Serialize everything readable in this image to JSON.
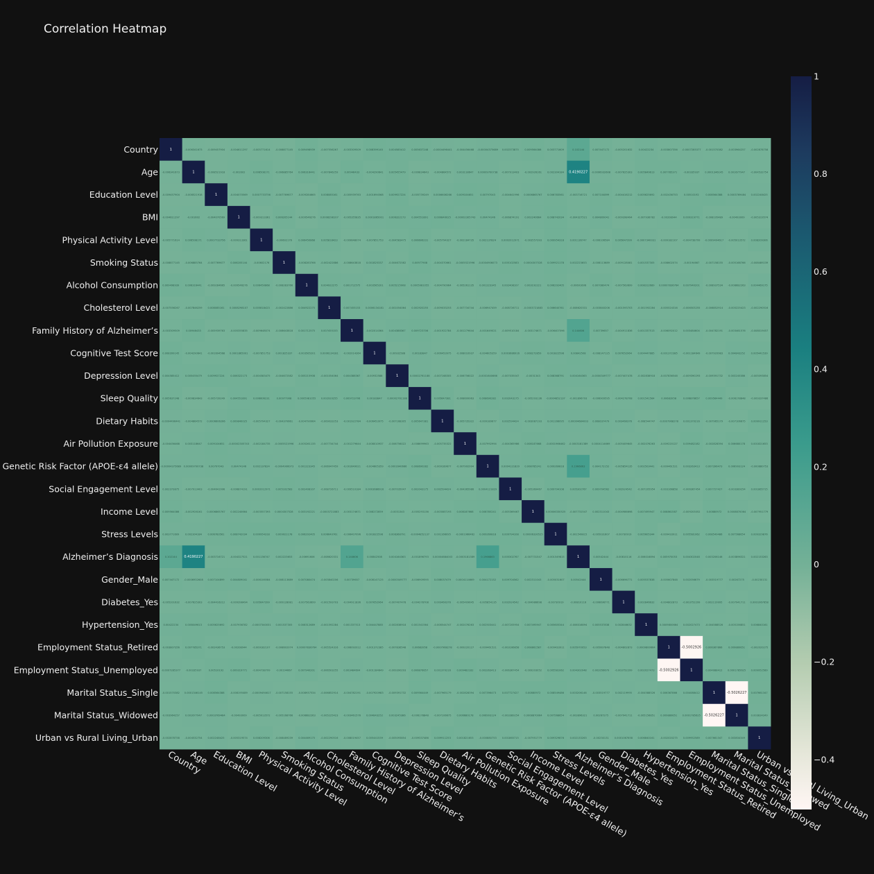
{
  "chart_data": {
    "type": "heatmap",
    "title": "Correlation Heatmap",
    "labels": [
      "Country",
      "Age",
      "Education Level",
      "BMI",
      "Physical Activity Level",
      "Smoking Status",
      "Alcohol Consumption",
      "Cholesterol Level",
      "Family History of Alzheimer’s",
      "Cognitive Test Score",
      "Depression Level",
      "Sleep Quality",
      "Dietary Habits",
      "Air Pollution Exposure",
      "Genetic Risk Factor (APOE-ε4 allele)",
      "Social Engagement Level",
      "Income Level",
      "Stress Levels",
      "Alzheimer’s Diagnosis",
      "Gender_Male",
      "Diabetes_Yes",
      "Hypertension_Yes",
      "Employment Status_Retired",
      "Employment Status_Unemployed",
      "Marital Status_Single",
      "Marital Status_Widowed",
      "Urban vs Rural Living_Urban"
    ],
    "diagonal_value": 1,
    "notable_correlations": [
      {
        "row": "Age",
        "col": "Alzheimer’s Diagnosis",
        "value": 0.4190227
      },
      {
        "row": "Family History of Alzheimer’s",
        "col": "Alzheimer’s Diagnosis",
        "value": 0.144606
      },
      {
        "row": "Genetic Risk Factor (APOE-ε4 allele)",
        "col": "Alzheimer’s Diagnosis",
        "value": 0.1966863
      },
      {
        "row": "Country",
        "col": "Alzheimer’s Diagnosis",
        "value": 0.102144
      },
      {
        "row": "Employment Status_Retired",
        "col": "Employment Status_Unemployed",
        "value": -0.5002926
      },
      {
        "row": "Marital Status_Single",
        "col": "Marital Status_Widowed",
        "value": -0.5026227
      }
    ],
    "near_zero_range": [
      -0.01,
      0.01
    ],
    "colorscale": {
      "name": "tempo",
      "zmin": -0.5026227,
      "zmax": 1,
      "ticks": [
        1,
        0.8,
        0.6,
        0.4,
        0.2,
        0,
        -0.2,
        -0.4
      ],
      "tick_labels": [
        "1",
        "0.8",
        "0.6",
        "0.4",
        "0.2",
        "0",
        "−0.2",
        "−0.4"
      ]
    }
  }
}
